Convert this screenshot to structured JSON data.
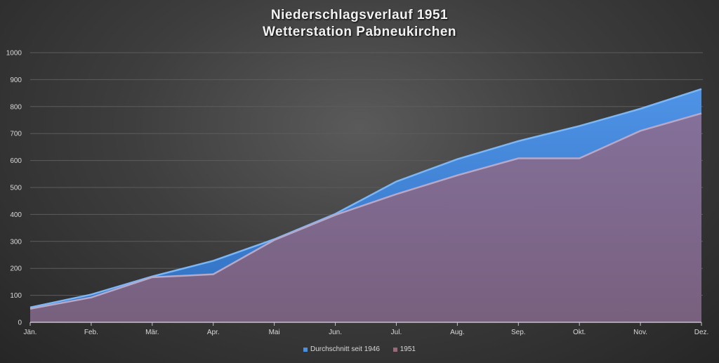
{
  "chart_data": {
    "type": "area",
    "title": [
      "Niederschlagsverlauf 1951",
      "Wetterstation Pabneukirchen"
    ],
    "categories": [
      "Jän.",
      "Feb.",
      "Mär.",
      "Apr.",
      "Mai",
      "Jun.",
      "Jul.",
      "Aug.",
      "Sep.",
      "Okt.",
      "Nov.",
      "Dez."
    ],
    "ylim": [
      0,
      1000
    ],
    "yticks": [
      0,
      100,
      200,
      300,
      400,
      500,
      600,
      700,
      800,
      900,
      1000
    ],
    "grid": true,
    "legend_position": "bottom",
    "series": [
      {
        "name": "Durchschnitt seit 1946",
        "color": "#4a8fe0",
        "values": [
          55,
          103,
          170,
          228,
          308,
          402,
          522,
          605,
          672,
          728,
          792,
          865
        ]
      },
      {
        "name": "1951",
        "color": "#7f6a90",
        "values": [
          50,
          92,
          167,
          178,
          305,
          398,
          475,
          545,
          608,
          608,
          710,
          775
        ]
      }
    ]
  }
}
